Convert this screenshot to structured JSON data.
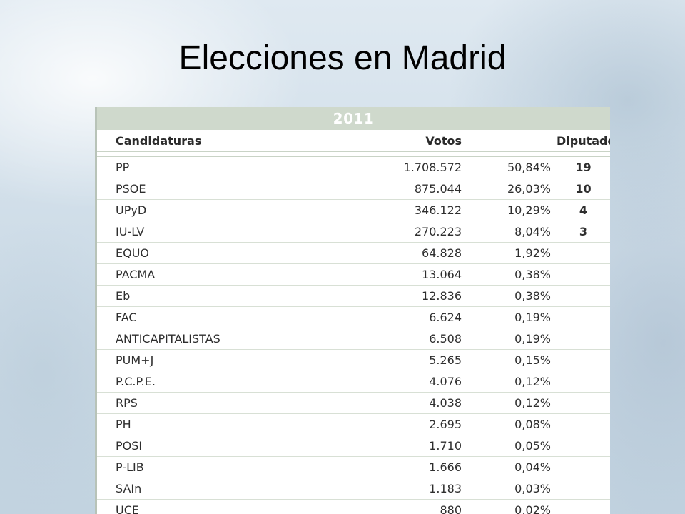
{
  "slide": {
    "title": "Elecciones en Madrid"
  },
  "table": {
    "year": "2011",
    "headers": {
      "candidaturas": "Candidaturas",
      "votos": "Votos",
      "diputados": "Diputados"
    },
    "rows": [
      {
        "name": "PP",
        "votes": "1.708.572",
        "pct": "50,84%",
        "seats": "19"
      },
      {
        "name": "PSOE",
        "votes": "875.044",
        "pct": "26,03%",
        "seats": "10"
      },
      {
        "name": "UPyD",
        "votes": "346.122",
        "pct": "10,29%",
        "seats": "4"
      },
      {
        "name": "IU-LV",
        "votes": "270.223",
        "pct": "8,04%",
        "seats": "3"
      },
      {
        "name": "EQUO",
        "votes": "64.828",
        "pct": "1,92%",
        "seats": ""
      },
      {
        "name": "PACMA",
        "votes": "13.064",
        "pct": "0,38%",
        "seats": ""
      },
      {
        "name": "Eb",
        "votes": "12.836",
        "pct": "0,38%",
        "seats": ""
      },
      {
        "name": "FAC",
        "votes": "6.624",
        "pct": "0,19%",
        "seats": ""
      },
      {
        "name": "ANTICAPITALISTAS",
        "votes": "6.508",
        "pct": "0,19%",
        "seats": ""
      },
      {
        "name": "PUM+J",
        "votes": "5.265",
        "pct": "0,15%",
        "seats": ""
      },
      {
        "name": "P.C.P.E.",
        "votes": "4.076",
        "pct": "0,12%",
        "seats": ""
      },
      {
        "name": "RPS",
        "votes": "4.038",
        "pct": "0,12%",
        "seats": ""
      },
      {
        "name": "PH",
        "votes": "2.695",
        "pct": "0,08%",
        "seats": ""
      },
      {
        "name": "POSI",
        "votes": "1.710",
        "pct": "0,05%",
        "seats": ""
      },
      {
        "name": "P-LIB",
        "votes": "1.666",
        "pct": "0,04%",
        "seats": ""
      },
      {
        "name": "SAIn",
        "votes": "1.183",
        "pct": "0,03%",
        "seats": ""
      },
      {
        "name": "UCE",
        "votes": "880",
        "pct": "0,02%",
        "seats": ""
      }
    ]
  }
}
